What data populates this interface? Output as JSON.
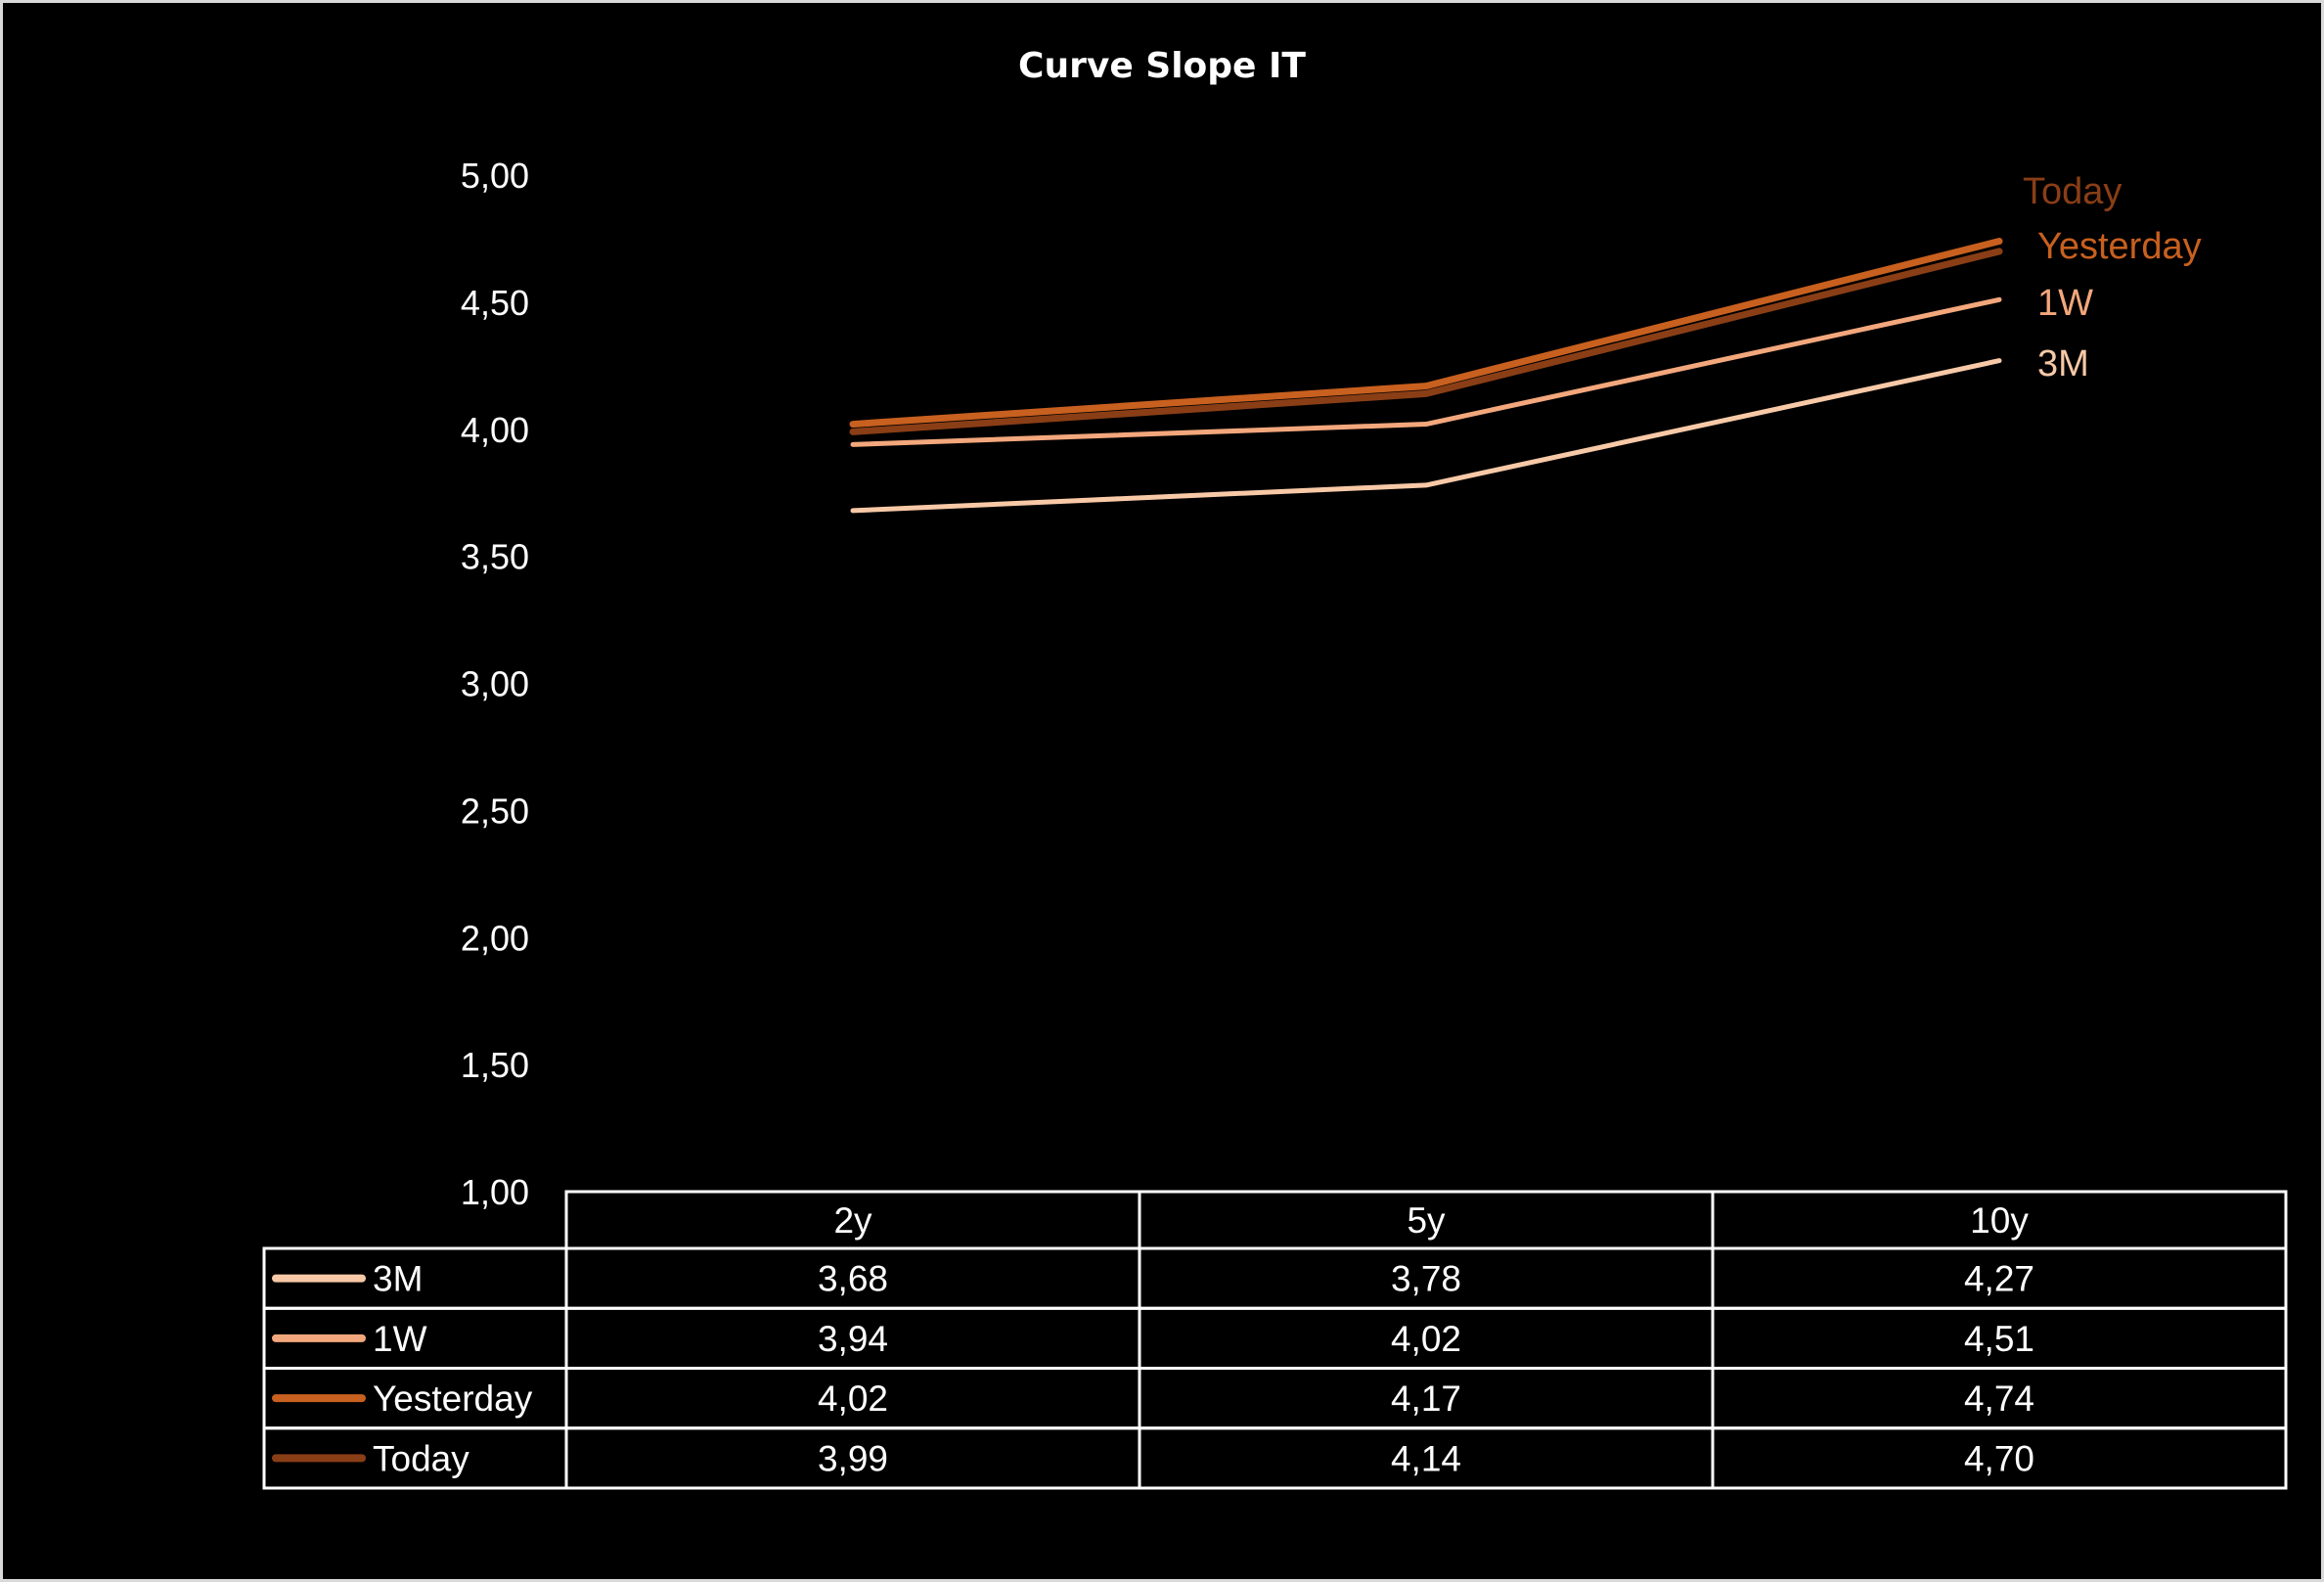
{
  "chart_data": {
    "type": "line",
    "title": "Curve Slope IT",
    "categories": [
      "2y",
      "5y",
      "10y"
    ],
    "ylim": [
      1.0,
      5.0
    ],
    "yticks": [
      "1,00",
      "1,50",
      "2,00",
      "2,50",
      "3,00",
      "3,50",
      "4,00",
      "4,50",
      "5,00"
    ],
    "legend": "data table below plot",
    "grid": false,
    "series": [
      {
        "name": "3M",
        "color": "#f8c9a7",
        "values": [
          3.68,
          3.78,
          4.27
        ],
        "labels": [
          "3,68",
          "3,78",
          "4,27"
        ]
      },
      {
        "name": "1W",
        "color": "#f3a77c",
        "values": [
          3.94,
          4.02,
          4.51
        ],
        "labels": [
          "3,94",
          "4,02",
          "4,51"
        ]
      },
      {
        "name": "Yesterday",
        "color": "#c8601f",
        "values": [
          4.02,
          4.17,
          4.74
        ],
        "labels": [
          "4,02",
          "4,17",
          "4,74"
        ]
      },
      {
        "name": "Today",
        "color": "#8a3e16",
        "values": [
          3.99,
          4.14,
          4.7
        ],
        "labels": [
          "3,99",
          "4,14",
          "4,70"
        ]
      }
    ]
  }
}
